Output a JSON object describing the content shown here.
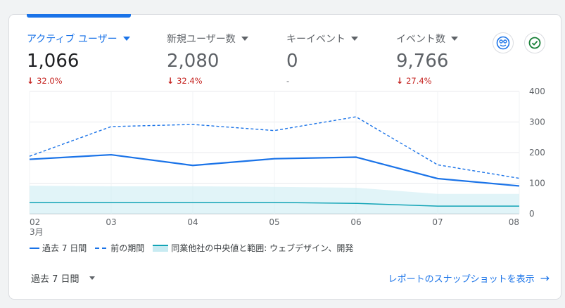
{
  "metrics": [
    {
      "label": "アクティブ ユーザー",
      "value": "1,066",
      "change": "32.0%",
      "direction": "down"
    },
    {
      "label": "新規ユーザー数",
      "value": "2,080",
      "change": "32.4%",
      "direction": "down"
    },
    {
      "label": "キーイベント",
      "value": "0",
      "change": "-",
      "direction": "none"
    },
    {
      "label": "イベント数",
      "value": "9,766",
      "change": "27.4%",
      "direction": "down"
    }
  ],
  "icons": [
    "insights-icon",
    "check-circle-icon"
  ],
  "colors": {
    "primary": "#1a73e8",
    "negative": "#c5221f",
    "band": "#c8ebf2",
    "band_line": "#12a4b6"
  },
  "chart_data": {
    "type": "line",
    "categories": [
      "02",
      "03",
      "04",
      "05",
      "06",
      "07",
      "08"
    ],
    "x_sub_label": "3月",
    "ylim": [
      0,
      400
    ],
    "yticks": [
      0,
      100,
      200,
      300,
      400
    ],
    "y_axis_position": "right",
    "grid": true,
    "series": [
      {
        "name": "過去 7 日間",
        "style": "solid",
        "values": [
          178,
          193,
          158,
          180,
          185,
          115,
          91
        ]
      },
      {
        "name": "前の期間",
        "style": "dashed",
        "values": [
          188,
          285,
          292,
          272,
          317,
          160,
          116
        ]
      }
    ],
    "band": {
      "name": "同業他社の中央値と範囲: ウェブデザイン、開発",
      "median": [
        37,
        37,
        37,
        37,
        34,
        25,
        25
      ],
      "upper": [
        92,
        90,
        90,
        88,
        85,
        65,
        65
      ],
      "lower": [
        0,
        0,
        0,
        0,
        0,
        0,
        0
      ]
    }
  },
  "legend": {
    "current": "過去 7 日間",
    "previous": "前の期間",
    "benchmark": "同業他社の中央値と範囲: ウェブデザイン、開発"
  },
  "footer": {
    "range_label": "過去 7 日間",
    "report_link": "レポートのスナップショットを表示",
    "report_arrow": "→"
  }
}
